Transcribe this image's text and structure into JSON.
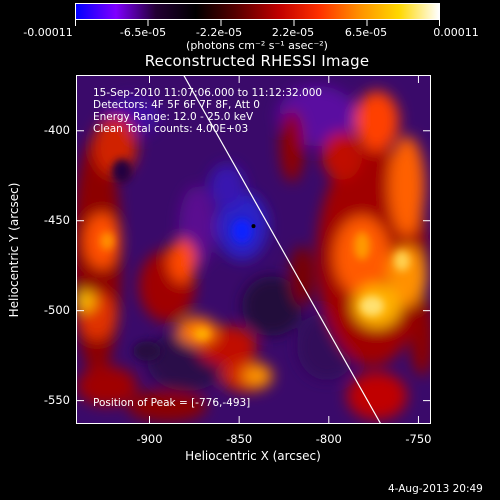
{
  "colorbar": {
    "tick_labels": [
      "-0.00011",
      "-6.5e-05",
      "-2.2e-05",
      "2.2e-05",
      "6.5e-05",
      "0.00011"
    ],
    "units": "(photons cm⁻² s⁻¹ asec⁻²)",
    "colors": [
      "#0000ff",
      "#7f00ff",
      "#220033",
      "#000000",
      "#550000",
      "#c00000",
      "#ff3000",
      "#ff9000",
      "#ffd800",
      "#ffffff"
    ]
  },
  "title": "Reconstructed RHESSI Image",
  "info": {
    "time_range": "15-Sep-2010 11:07:06.000 to 11:12:32.000",
    "detectors": "Detectors: 4F 5F 6F 7F 8F, Att 0",
    "energy_range": "Energy Range: 12.0 - 25.0 keV",
    "clean": "Clean     Total counts: 4.00E+03"
  },
  "peak": "Position of Peak = [-776,-493]",
  "timestamp": "4-Aug-2013 20:49",
  "chart_data": {
    "type": "heatmap",
    "title": "Reconstructed RHESSI Image",
    "xlabel": "Heliocentric X (arcsec)",
    "ylabel": "Heliocentric Y (arcsec)",
    "xlim": [
      -941,
      -743
    ],
    "ylim": [
      -563,
      -369
    ],
    "xticks": [
      -900,
      -850,
      -800,
      -750
    ],
    "yticks": [
      -400,
      -450,
      -500,
      -550
    ],
    "xtick_labels": [
      "-900",
      "-850",
      "-800",
      "-750"
    ],
    "ytick_labels": [
      "-400",
      "-450",
      "-500",
      "-550"
    ],
    "limb_line": [
      [
        -881,
        -369
      ],
      [
        -771,
        -563
      ]
    ],
    "marker": [
      -842,
      -453
    ],
    "color_range": [
      -0.00011,
      0.00011
    ]
  }
}
